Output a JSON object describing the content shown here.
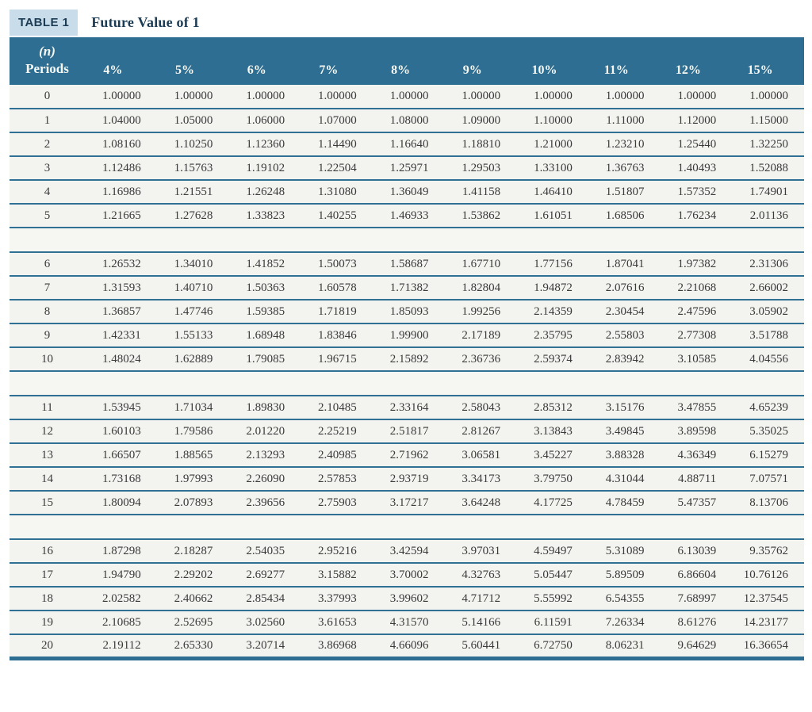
{
  "header": {
    "badge_label": "TABLE 1",
    "title": "Future Value of 1"
  },
  "colors": {
    "header_bg": "#2e6e92",
    "line": "#2f7094",
    "badge_bg": "#c9dcea",
    "title_color": "#1c3c55",
    "row_bg": "#f3f3f0",
    "spacer_bg": "#f6f6f3",
    "header_text": "#f8f8f2",
    "cell_text": "#3a3a3a"
  },
  "table": {
    "period_header_top": "(n)",
    "period_header_bottom": "Periods",
    "rate_headers": [
      "4%",
      "5%",
      "6%",
      "7%",
      "8%",
      "9%",
      "10%",
      "11%",
      "12%",
      "15%"
    ],
    "spacer_after": [
      5,
      10,
      15
    ],
    "rows": [
      {
        "period": 0,
        "values": [
          "1.00000",
          "1.00000",
          "1.00000",
          "1.00000",
          "1.00000",
          "1.00000",
          "1.00000",
          "1.00000",
          "1.00000",
          "1.00000"
        ]
      },
      {
        "period": 1,
        "values": [
          "1.04000",
          "1.05000",
          "1.06000",
          "1.07000",
          "1.08000",
          "1.09000",
          "1.10000",
          "1.11000",
          "1.12000",
          "1.15000"
        ]
      },
      {
        "period": 2,
        "values": [
          "1.08160",
          "1.10250",
          "1.12360",
          "1.14490",
          "1.16640",
          "1.18810",
          "1.21000",
          "1.23210",
          "1.25440",
          "1.32250"
        ]
      },
      {
        "period": 3,
        "values": [
          "1.12486",
          "1.15763",
          "1.19102",
          "1.22504",
          "1.25971",
          "1.29503",
          "1.33100",
          "1.36763",
          "1.40493",
          "1.52088"
        ]
      },
      {
        "period": 4,
        "values": [
          "1.16986",
          "1.21551",
          "1.26248",
          "1.31080",
          "1.36049",
          "1.41158",
          "1.46410",
          "1.51807",
          "1.57352",
          "1.74901"
        ]
      },
      {
        "period": 5,
        "values": [
          "1.21665",
          "1.27628",
          "1.33823",
          "1.40255",
          "1.46933",
          "1.53862",
          "1.61051",
          "1.68506",
          "1.76234",
          "2.01136"
        ]
      },
      {
        "period": 6,
        "values": [
          "1.26532",
          "1.34010",
          "1.41852",
          "1.50073",
          "1.58687",
          "1.67710",
          "1.77156",
          "1.87041",
          "1.97382",
          "2.31306"
        ]
      },
      {
        "period": 7,
        "values": [
          "1.31593",
          "1.40710",
          "1.50363",
          "1.60578",
          "1.71382",
          "1.82804",
          "1.94872",
          "2.07616",
          "2.21068",
          "2.66002"
        ]
      },
      {
        "period": 8,
        "values": [
          "1.36857",
          "1.47746",
          "1.59385",
          "1.71819",
          "1.85093",
          "1.99256",
          "2.14359",
          "2.30454",
          "2.47596",
          "3.05902"
        ]
      },
      {
        "period": 9,
        "values": [
          "1.42331",
          "1.55133",
          "1.68948",
          "1.83846",
          "1.99900",
          "2.17189",
          "2.35795",
          "2.55803",
          "2.77308",
          "3.51788"
        ]
      },
      {
        "period": 10,
        "values": [
          "1.48024",
          "1.62889",
          "1.79085",
          "1.96715",
          "2.15892",
          "2.36736",
          "2.59374",
          "2.83942",
          "3.10585",
          "4.04556"
        ]
      },
      {
        "period": 11,
        "values": [
          "1.53945",
          "1.71034",
          "1.89830",
          "2.10485",
          "2.33164",
          "2.58043",
          "2.85312",
          "3.15176",
          "3.47855",
          "4.65239"
        ]
      },
      {
        "period": 12,
        "values": [
          "1.60103",
          "1.79586",
          "2.01220",
          "2.25219",
          "2.51817",
          "2.81267",
          "3.13843",
          "3.49845",
          "3.89598",
          "5.35025"
        ]
      },
      {
        "period": 13,
        "values": [
          "1.66507",
          "1.88565",
          "2.13293",
          "2.40985",
          "2.71962",
          "3.06581",
          "3.45227",
          "3.88328",
          "4.36349",
          "6.15279"
        ]
      },
      {
        "period": 14,
        "values": [
          "1.73168",
          "1.97993",
          "2.26090",
          "2.57853",
          "2.93719",
          "3.34173",
          "3.79750",
          "4.31044",
          "4.88711",
          "7.07571"
        ]
      },
      {
        "period": 15,
        "values": [
          "1.80094",
          "2.07893",
          "2.39656",
          "2.75903",
          "3.17217",
          "3.64248",
          "4.17725",
          "4.78459",
          "5.47357",
          "8.13706"
        ]
      },
      {
        "period": 16,
        "values": [
          "1.87298",
          "2.18287",
          "2.54035",
          "2.95216",
          "3.42594",
          "3.97031",
          "4.59497",
          "5.31089",
          "6.13039",
          "9.35762"
        ]
      },
      {
        "period": 17,
        "values": [
          "1.94790",
          "2.29202",
          "2.69277",
          "3.15882",
          "3.70002",
          "4.32763",
          "5.05447",
          "5.89509",
          "6.86604",
          "10.76126"
        ]
      },
      {
        "period": 18,
        "values": [
          "2.02582",
          "2.40662",
          "2.85434",
          "3.37993",
          "3.99602",
          "4.71712",
          "5.55992",
          "6.54355",
          "7.68997",
          "12.37545"
        ]
      },
      {
        "period": 19,
        "values": [
          "2.10685",
          "2.52695",
          "3.02560",
          "3.61653",
          "4.31570",
          "5.14166",
          "6.11591",
          "7.26334",
          "8.61276",
          "14.23177"
        ]
      },
      {
        "period": 20,
        "values": [
          "2.19112",
          "2.65330",
          "3.20714",
          "3.86968",
          "4.66096",
          "5.60441",
          "6.72750",
          "8.06231",
          "9.64629",
          "16.36654"
        ]
      }
    ]
  }
}
